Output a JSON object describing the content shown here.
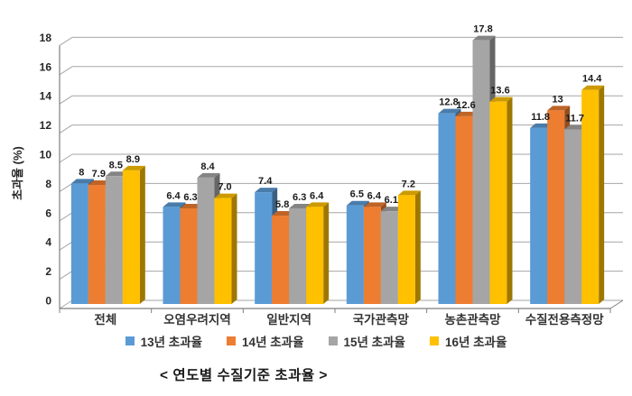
{
  "chart_data": {
    "type": "bar",
    "style": "3d-clustered-column",
    "caption": "< 연도별 수질기준 초과율 >",
    "ylabel": "초과율 (%)",
    "xlabel": "",
    "ylim": [
      0,
      18
    ],
    "yticks": [
      0,
      2,
      4,
      6,
      8,
      10,
      12,
      14,
      16,
      18
    ],
    "grid": true,
    "legend_position": "bottom",
    "categories": [
      "전체",
      "오염우려지역",
      "일반지역",
      "국가관측망",
      "농촌관측망",
      "수질전용측정망"
    ],
    "series": [
      {
        "name": "13년 초과율",
        "color": "#5B9BD5",
        "values": [
          8,
          6.4,
          7.4,
          6.5,
          12.8,
          11.8
        ],
        "labels": [
          "8",
          "6.4",
          "7.4",
          "6.5",
          "12.8",
          "11.8"
        ]
      },
      {
        "name": "14년 초과율",
        "color": "#ED7D31",
        "values": [
          7.9,
          6.3,
          5.8,
          6.4,
          12.6,
          13
        ],
        "labels": [
          "7.9",
          "6.3",
          "5.8",
          "6.4",
          "12.6",
          "13"
        ]
      },
      {
        "name": "15년 초과율",
        "color": "#A5A5A5",
        "values": [
          8.5,
          8.4,
          6.3,
          6.1,
          17.8,
          11.7
        ],
        "labels": [
          "8.5",
          "8.4",
          "6.3",
          "6.1",
          "17.8",
          "11.7"
        ]
      },
      {
        "name": "16년 초과율",
        "color": "#FFC000",
        "values": [
          8.9,
          7.0,
          6.4,
          7.2,
          13.6,
          14.4
        ],
        "labels": [
          "8.9",
          "7.0",
          "6.4",
          "7.2",
          "13.6",
          "14.4"
        ]
      }
    ],
    "style_colors": {
      "gridline": "#A6A6A6",
      "axis": "#7F7F7F",
      "tick_text": "#262626",
      "value_label_text": "#1a1a1a",
      "category_text": "#333333"
    }
  }
}
